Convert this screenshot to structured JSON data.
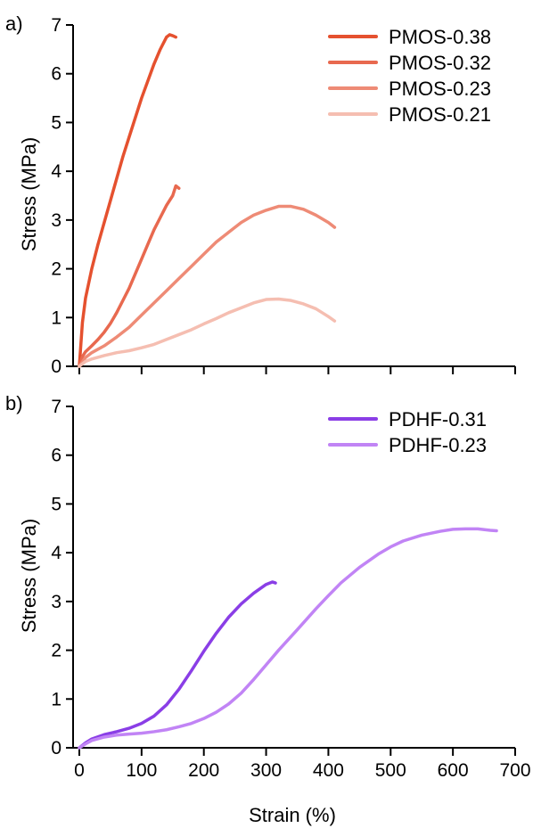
{
  "chart_data": [
    {
      "type": "line",
      "panel_label": "a)",
      "ylabel": "Stress (MPa)",
      "xlabel": "",
      "xlim": [
        -10,
        700
      ],
      "ylim": [
        0,
        7
      ],
      "yticks": [
        0,
        1,
        2,
        3,
        4,
        5,
        6,
        7
      ],
      "xticks": [
        0,
        100,
        200,
        300,
        400,
        500,
        600,
        700
      ],
      "show_x_tick_labels": false,
      "grid": false,
      "legend_position": "top-right",
      "series": [
        {
          "name": "PMOS-0.38",
          "color": "#e5512f",
          "x": [
            0,
            5,
            10,
            20,
            30,
            40,
            50,
            60,
            70,
            80,
            90,
            100,
            110,
            120,
            130,
            140,
            145,
            150,
            155
          ],
          "y": [
            0,
            0.9,
            1.4,
            2.0,
            2.5,
            2.95,
            3.4,
            3.85,
            4.3,
            4.7,
            5.1,
            5.5,
            5.85,
            6.2,
            6.5,
            6.75,
            6.8,
            6.78,
            6.75
          ]
        },
        {
          "name": "PMOS-0.32",
          "color": "#e8694f",
          "x": [
            0,
            5,
            10,
            20,
            30,
            40,
            50,
            60,
            70,
            80,
            90,
            100,
            110,
            120,
            130,
            140,
            150,
            155,
            160
          ],
          "y": [
            0,
            0.2,
            0.3,
            0.42,
            0.55,
            0.7,
            0.88,
            1.1,
            1.35,
            1.6,
            1.9,
            2.2,
            2.5,
            2.8,
            3.05,
            3.3,
            3.5,
            3.7,
            3.65
          ]
        },
        {
          "name": "PMOS-0.23",
          "color": "#ee8b76",
          "x": [
            0,
            10,
            20,
            40,
            60,
            80,
            100,
            120,
            140,
            160,
            180,
            200,
            220,
            240,
            260,
            280,
            300,
            320,
            340,
            360,
            380,
            400,
            410
          ],
          "y": [
            0,
            0.18,
            0.28,
            0.42,
            0.6,
            0.8,
            1.05,
            1.3,
            1.55,
            1.8,
            2.05,
            2.3,
            2.55,
            2.75,
            2.95,
            3.1,
            3.2,
            3.28,
            3.28,
            3.22,
            3.1,
            2.95,
            2.85
          ]
        },
        {
          "name": "PMOS-0.21",
          "color": "#f5beb1",
          "x": [
            0,
            10,
            20,
            40,
            60,
            80,
            100,
            120,
            140,
            160,
            180,
            200,
            220,
            240,
            260,
            280,
            300,
            320,
            340,
            360,
            380,
            400,
            410
          ],
          "y": [
            0,
            0.1,
            0.15,
            0.22,
            0.28,
            0.32,
            0.38,
            0.45,
            0.55,
            0.65,
            0.75,
            0.87,
            0.98,
            1.1,
            1.2,
            1.3,
            1.37,
            1.38,
            1.35,
            1.28,
            1.18,
            1.02,
            0.93
          ]
        }
      ]
    },
    {
      "type": "line",
      "panel_label": "b)",
      "ylabel": "Stress (MPa)",
      "xlabel": "Strain (%)",
      "xlim": [
        -10,
        700
      ],
      "ylim": [
        0,
        7
      ],
      "yticks": [
        0,
        1,
        2,
        3,
        4,
        5,
        6,
        7
      ],
      "xticks": [
        0,
        100,
        200,
        300,
        400,
        500,
        600,
        700
      ],
      "show_x_tick_labels": true,
      "grid": false,
      "legend_position": "top-right",
      "series": [
        {
          "name": "PDHF-0.31",
          "color": "#8a3ee6",
          "x": [
            0,
            10,
            20,
            40,
            60,
            80,
            100,
            120,
            140,
            160,
            180,
            200,
            220,
            240,
            260,
            280,
            300,
            310,
            315
          ],
          "y": [
            0,
            0.1,
            0.18,
            0.27,
            0.33,
            0.4,
            0.5,
            0.65,
            0.88,
            1.2,
            1.58,
            1.98,
            2.35,
            2.68,
            2.95,
            3.17,
            3.35,
            3.4,
            3.38
          ]
        },
        {
          "name": "PDHF-0.23",
          "color": "#c184f5",
          "x": [
            0,
            10,
            20,
            40,
            60,
            80,
            100,
            120,
            140,
            160,
            180,
            200,
            220,
            240,
            260,
            280,
            300,
            320,
            350,
            380,
            400,
            420,
            450,
            480,
            500,
            520,
            550,
            580,
            600,
            620,
            640,
            660,
            670
          ],
          "y": [
            0,
            0.08,
            0.15,
            0.22,
            0.26,
            0.28,
            0.3,
            0.33,
            0.37,
            0.43,
            0.5,
            0.6,
            0.73,
            0.9,
            1.12,
            1.4,
            1.7,
            2.0,
            2.42,
            2.85,
            3.12,
            3.38,
            3.7,
            3.97,
            4.12,
            4.24,
            4.36,
            4.44,
            4.48,
            4.49,
            4.49,
            4.46,
            4.45
          ]
        }
      ]
    }
  ]
}
